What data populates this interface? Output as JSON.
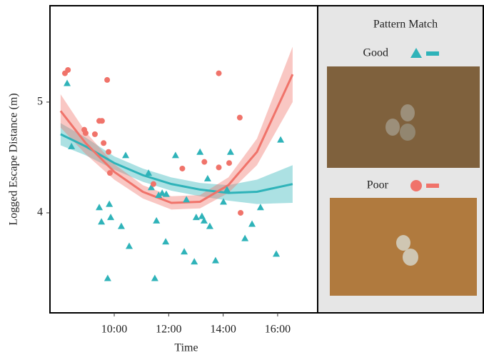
{
  "chart_data": {
    "type": "scatter",
    "x_label": "Time",
    "y_label": "Logged Escape Distance (m)",
    "xlim": [
      7.64,
      17.47
    ],
    "ylim": [
      3.097,
      5.87
    ],
    "xticks": [
      {
        "value": 10,
        "label": "10:00"
      },
      {
        "value": 12,
        "label": "12:00"
      },
      {
        "value": 14,
        "label": "14:00"
      },
      {
        "value": 16,
        "label": "16:00"
      }
    ],
    "yticks": [
      4,
      5
    ],
    "legend_title": "Pattern Match",
    "series": [
      {
        "name": "Good",
        "color": "#2fb3b9",
        "marker": "triangle",
        "x": [
          8.27,
          8.43,
          9.45,
          9.53,
          9.76,
          9.82,
          9.87,
          10.26,
          10.42,
          10.55,
          11.26,
          11.36,
          11.49,
          11.55,
          11.63,
          11.76,
          11.91,
          11.89,
          12.25,
          12.57,
          12.65,
          12.94,
          13.01,
          13.15,
          13.22,
          13.3,
          13.51,
          13.72,
          13.43,
          14.01,
          14.14,
          14.27,
          14.8,
          15.06,
          15.37,
          15.95,
          16.11
        ],
        "values": [
          5.17,
          4.6,
          4.05,
          3.92,
          3.41,
          4.08,
          3.96,
          3.88,
          4.52,
          3.7,
          4.36,
          4.23,
          3.41,
          3.93,
          4.16,
          4.18,
          4.17,
          3.74,
          4.52,
          3.65,
          4.12,
          3.56,
          3.96,
          4.55,
          3.97,
          3.93,
          3.88,
          3.57,
          4.31,
          4.1,
          4.21,
          4.55,
          3.77,
          3.9,
          4.05,
          3.63,
          4.66
        ],
        "fit": {
          "x": [
            8.03,
            8.95,
            10,
            11.05,
            12.1,
            13.15,
            14.19,
            15.24,
            16.55
          ],
          "values": [
            4.71,
            4.6,
            4.45,
            4.34,
            4.26,
            4.21,
            4.18,
            4.19,
            4.26
          ],
          "lower": [
            4.61,
            4.52,
            4.39,
            4.28,
            4.2,
            4.15,
            4.11,
            4.08,
            4.09
          ],
          "upper": [
            4.81,
            4.68,
            4.51,
            4.4,
            4.32,
            4.27,
            4.25,
            4.3,
            4.43
          ]
        }
      },
      {
        "name": "Poor",
        "color": "#f0736a",
        "marker": "circle",
        "x": [
          8.19,
          8.3,
          8.9,
          8.95,
          9.29,
          9.45,
          9.55,
          9.61,
          9.74,
          9.79,
          9.84,
          11.44,
          12.5,
          13.31,
          13.84,
          13.84,
          14.22,
          14.61,
          14.64
        ],
        "values": [
          5.26,
          5.29,
          4.75,
          4.72,
          4.71,
          4.83,
          4.83,
          4.63,
          5.2,
          4.55,
          4.36,
          4.26,
          4.4,
          4.46,
          5.26,
          4.41,
          4.45,
          4.86,
          4.0
        ],
        "fit": {
          "x": [
            8.03,
            8.95,
            10,
            11.05,
            12.1,
            13.15,
            14.19,
            15.24,
            16.55
          ],
          "values": [
            4.92,
            4.63,
            4.37,
            4.19,
            4.09,
            4.1,
            4.25,
            4.55,
            5.25
          ],
          "lower": [
            4.77,
            4.53,
            4.3,
            4.13,
            4.03,
            4.04,
            4.18,
            4.43,
            5.0
          ],
          "upper": [
            5.07,
            4.73,
            4.44,
            4.25,
            4.15,
            4.16,
            4.32,
            4.67,
            5.5
          ]
        }
      }
    ]
  }
}
